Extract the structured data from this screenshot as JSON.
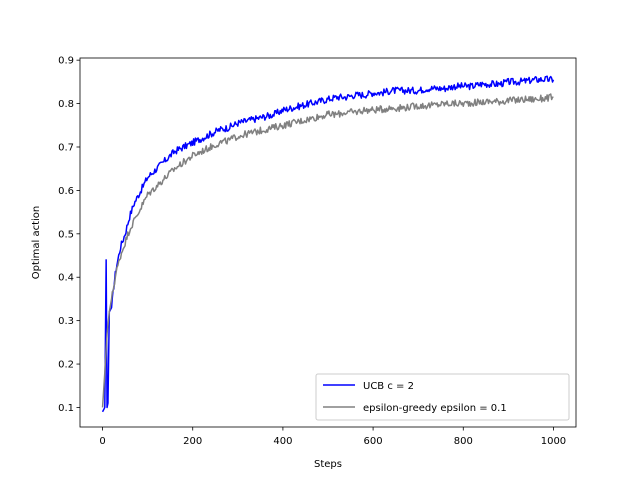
{
  "chart_data": {
    "type": "line",
    "xlabel": "Steps",
    "ylabel": "Optimal action",
    "xlim": [
      -50,
      1050
    ],
    "ylim": [
      0.055,
      0.905
    ],
    "xticks": [
      0,
      200,
      400,
      600,
      800,
      1000
    ],
    "yticks": [
      0.1,
      0.2,
      0.3,
      0.4,
      0.5,
      0.6,
      0.7,
      0.8,
      0.9
    ],
    "grid": false,
    "legend_position": "lower-right",
    "series": [
      {
        "name": "UCB c = 2",
        "color": "#0000ff",
        "x": [
          0,
          5,
          8,
          10,
          12,
          15,
          20,
          25,
          30,
          40,
          50,
          60,
          70,
          80,
          90,
          100,
          120,
          140,
          160,
          180,
          200,
          220,
          240,
          260,
          280,
          300,
          320,
          340,
          360,
          380,
          400,
          420,
          440,
          460,
          480,
          500,
          520,
          540,
          560,
          580,
          600,
          620,
          640,
          660,
          680,
          700,
          720,
          740,
          760,
          780,
          800,
          820,
          840,
          860,
          880,
          900,
          920,
          940,
          960,
          980,
          1000
        ],
        "values": [
          0.09,
          0.1,
          0.44,
          0.1,
          0.11,
          0.32,
          0.33,
          0.38,
          0.42,
          0.47,
          0.5,
          0.54,
          0.57,
          0.59,
          0.61,
          0.63,
          0.65,
          0.67,
          0.69,
          0.7,
          0.71,
          0.72,
          0.73,
          0.74,
          0.745,
          0.755,
          0.76,
          0.765,
          0.77,
          0.775,
          0.785,
          0.79,
          0.795,
          0.8,
          0.805,
          0.81,
          0.815,
          0.815,
          0.82,
          0.82,
          0.825,
          0.825,
          0.83,
          0.83,
          0.83,
          0.83,
          0.835,
          0.835,
          0.835,
          0.84,
          0.84,
          0.84,
          0.845,
          0.845,
          0.845,
          0.85,
          0.85,
          0.852,
          0.855,
          0.856,
          0.855
        ]
      },
      {
        "name": "epsilon-greedy epsilon = 0.1",
        "color": "#808080",
        "x": [
          0,
          5,
          10,
          15,
          20,
          25,
          30,
          40,
          50,
          60,
          70,
          80,
          90,
          100,
          120,
          140,
          160,
          180,
          200,
          220,
          240,
          260,
          280,
          300,
          320,
          340,
          360,
          380,
          400,
          420,
          440,
          460,
          480,
          500,
          520,
          540,
          560,
          580,
          600,
          620,
          640,
          660,
          680,
          700,
          720,
          740,
          760,
          780,
          800,
          820,
          840,
          860,
          880,
          900,
          920,
          940,
          960,
          980,
          1000
        ],
        "values": [
          0.1,
          0.18,
          0.27,
          0.32,
          0.35,
          0.38,
          0.41,
          0.45,
          0.48,
          0.51,
          0.53,
          0.55,
          0.57,
          0.59,
          0.61,
          0.63,
          0.65,
          0.665,
          0.68,
          0.69,
          0.7,
          0.71,
          0.715,
          0.725,
          0.73,
          0.735,
          0.74,
          0.745,
          0.75,
          0.755,
          0.76,
          0.765,
          0.77,
          0.775,
          0.775,
          0.78,
          0.78,
          0.785,
          0.785,
          0.787,
          0.79,
          0.79,
          0.792,
          0.795,
          0.795,
          0.797,
          0.8,
          0.8,
          0.8,
          0.802,
          0.803,
          0.805,
          0.805,
          0.807,
          0.808,
          0.81,
          0.81,
          0.812,
          0.815
        ]
      }
    ]
  }
}
